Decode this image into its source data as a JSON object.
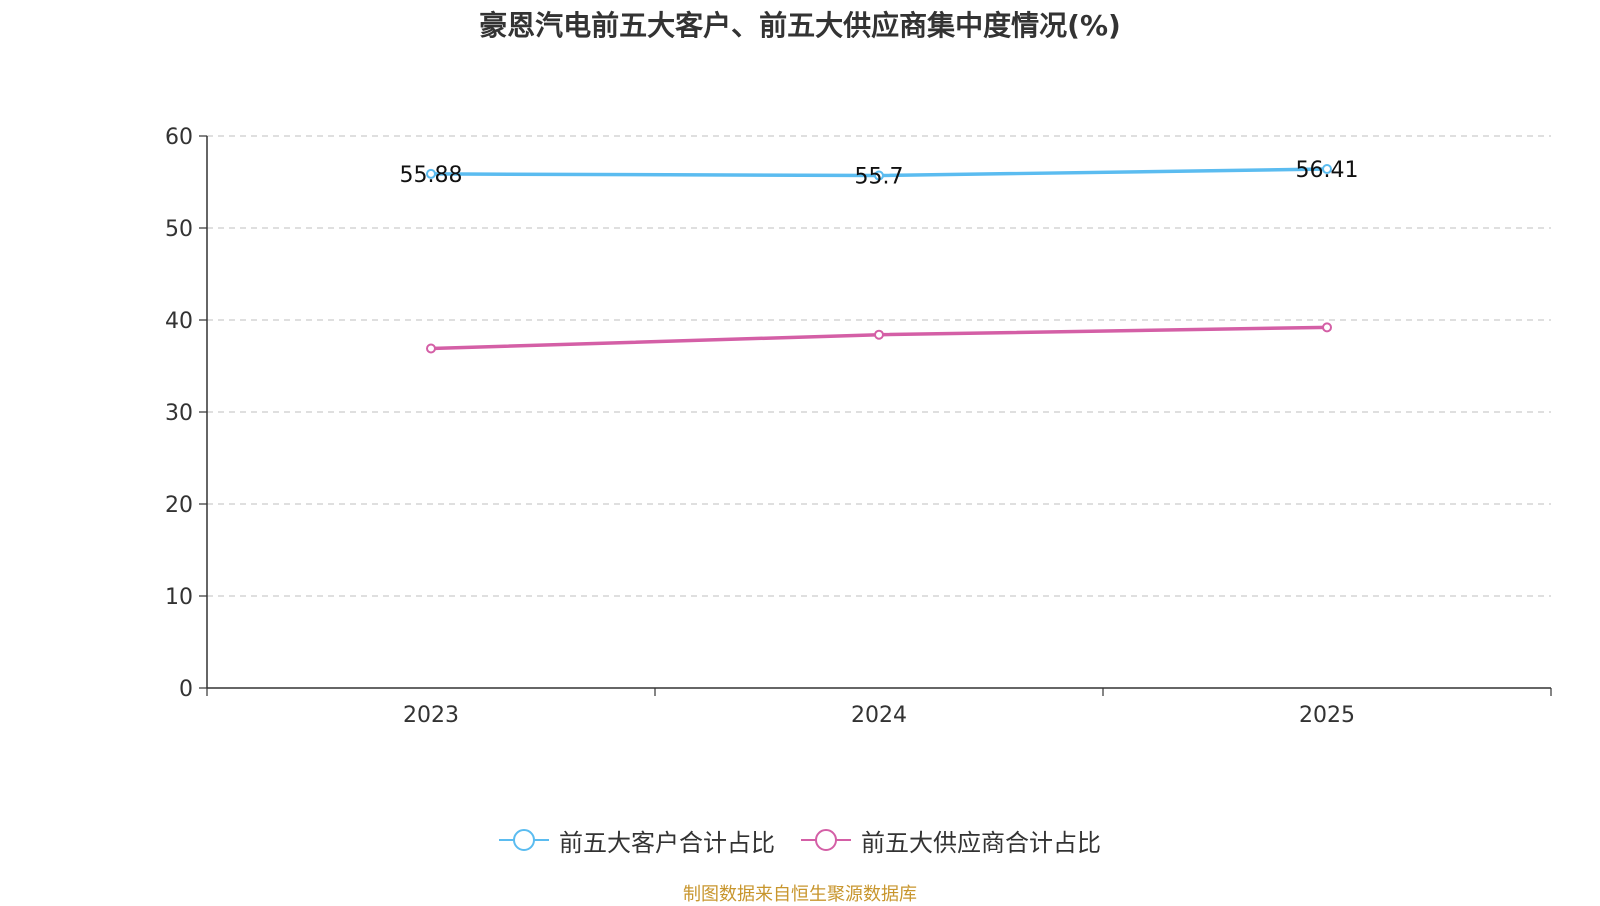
{
  "chart_data": {
    "type": "line",
    "title": "豪恩汽电前五大客户、前五大供应商集中度情况(%)",
    "categories": [
      "2023",
      "2024",
      "2025"
    ],
    "ylim": [
      0,
      60
    ],
    "yticks": [
      0,
      10,
      20,
      30,
      40,
      50,
      60
    ],
    "grid": true,
    "legend_position": "bottom",
    "series": [
      {
        "name": "前五大客户合计占比",
        "values": [
          55.88,
          55.7,
          56.41
        ],
        "color": "#5bbcf0",
        "labels": [
          "55.88",
          "55.7",
          "56.41"
        ]
      },
      {
        "name": "前五大供应商合计占比",
        "values": [
          36.9,
          38.4,
          39.2
        ],
        "color": "#d45fa6"
      }
    ]
  },
  "source": "制图数据来自恒生聚源数据库"
}
